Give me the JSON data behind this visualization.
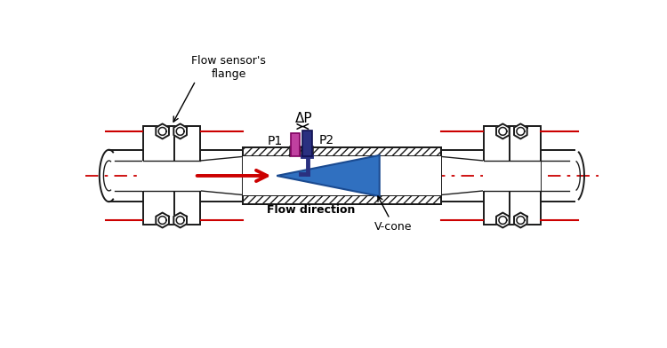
{
  "bg_color": "#ffffff",
  "pipe_color": "#1a1a1a",
  "red_line_color": "#cc0000",
  "arrow_color": "#cc0000",
  "p1_color": "#c040a0",
  "p2_color": "#2a3080",
  "vcone_color": "#3070c0",
  "vcone_edge": "#1a4a90",
  "label_flange": "Flow sensor's\nflange",
  "label_p1": "P1",
  "label_p2": "P2",
  "label_dp": "ΔP",
  "label_flow": "Flow direction",
  "label_vcone": "V-cone"
}
